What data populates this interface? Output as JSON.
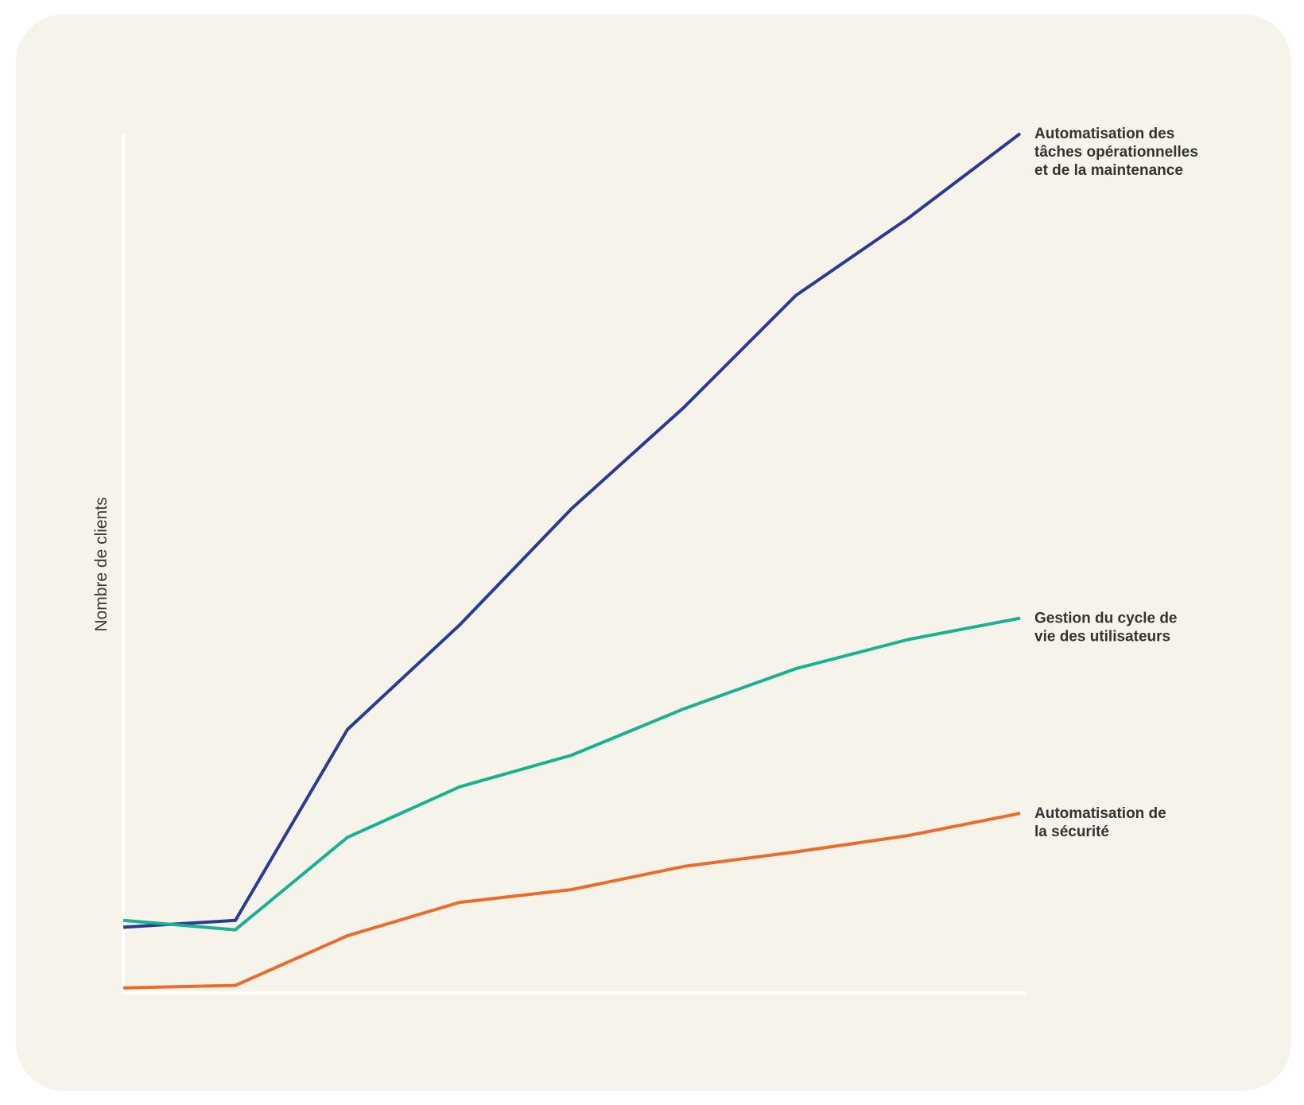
{
  "chart_data": {
    "type": "line",
    "title": "",
    "xlabel": "",
    "ylabel": "Nombre de clients",
    "x": [
      1,
      2,
      3,
      4,
      5,
      6,
      7,
      8,
      9
    ],
    "ylim": [
      0,
      100
    ],
    "grid": false,
    "legend": "labels at line ends (right)",
    "series": [
      {
        "name": "Automatisation des tâches opérationnelles et de la maintenance",
        "label_lines": [
          "Automatisation des",
          "tâches opérationnelles",
          "et de la maintenance"
        ],
        "color": "#2b3a97",
        "values": [
          7.3,
          8.1,
          30.4,
          42.6,
          56.2,
          68.0,
          81.1,
          90.1,
          100.0
        ]
      },
      {
        "name": "Gestion du cycle de vie des utilisateurs",
        "label_lines": [
          "Gestion du cycle de",
          "vie des utilisateurs"
        ],
        "color": "#17b193",
        "values": [
          8.1,
          7.0,
          17.8,
          23.7,
          27.4,
          32.8,
          37.5,
          40.9,
          43.4
        ]
      },
      {
        "name": "Automatisation de la sécurité",
        "label_lines": [
          "Automatisation de",
          "la sécurité"
        ],
        "color": "#ee6a2b",
        "values": [
          0.2,
          0.5,
          6.3,
          10.2,
          11.7,
          14.4,
          16.1,
          18.0,
          20.6
        ]
      }
    ]
  }
}
